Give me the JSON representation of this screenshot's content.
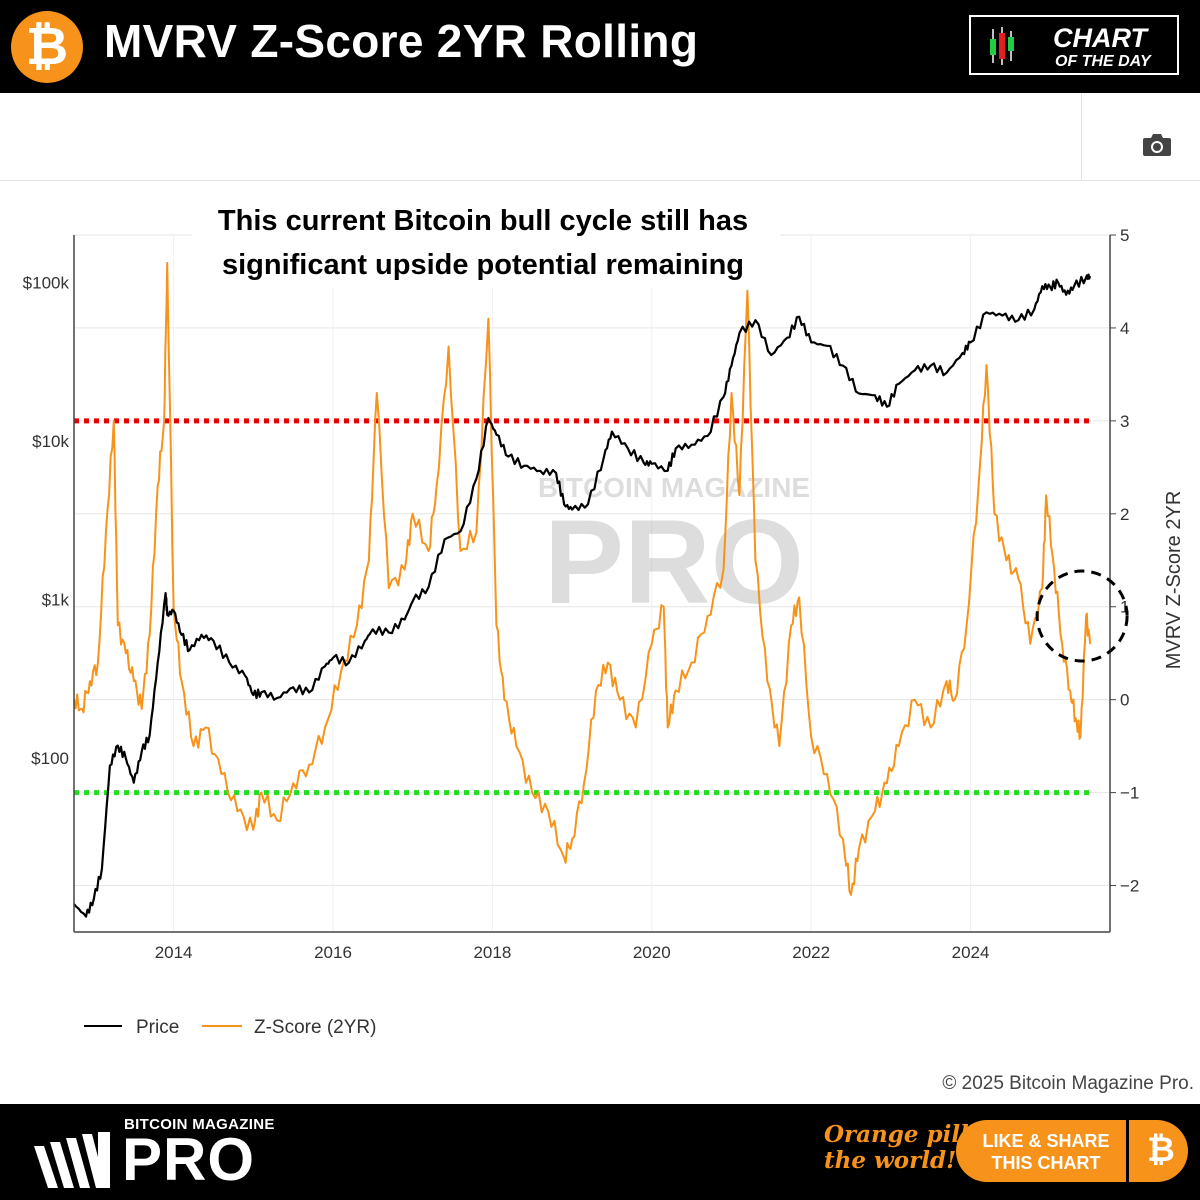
{
  "header": {
    "title": "MVRV Z-Score 2YR Rolling",
    "logo_icon": "bitcoin-icon",
    "badge_line1": "CHART",
    "badge_line2": "OF THE DAY"
  },
  "toolbar": {
    "camera_icon": "camera-icon"
  },
  "annotation": {
    "line1": "This current Bitcoin bull cycle still has",
    "line2": "significant upside potential remaining"
  },
  "watermark": {
    "small": "BITCOIN MAGAZINE",
    "big": "PRO"
  },
  "copyright": "© 2025 Bitcoin Magazine Pro.",
  "footer": {
    "brand_small": "BITCOIN MAGAZINE",
    "brand_big": "PRO",
    "slogan_line1": "Orange pill",
    "slogan_line2": "the world!",
    "share_line1": "LIKE & SHARE",
    "share_line2": "THIS CHART"
  },
  "colors": {
    "price": "#000000",
    "zscore": "#f7931a",
    "upper_band": "#e60000",
    "lower_band": "#22dd22",
    "accent": "#f7931a"
  },
  "chart_data": {
    "type": "line",
    "xlim": [
      2012.75,
      2025.75
    ],
    "x_ticks": [
      "2014",
      "2016",
      "2018",
      "2020",
      "2022",
      "2024"
    ],
    "y_left": {
      "scale": "log",
      "ticks": [
        "$100",
        "$1k",
        "$10k",
        "$100k"
      ],
      "range": [
        8,
        200000
      ]
    },
    "y_right": {
      "label": "MVRV Z-Score 2YR",
      "ticks": [
        "−2",
        "−1",
        "0",
        "1",
        "2",
        "3",
        "4",
        "5"
      ],
      "range": [
        -2.5,
        5
      ]
    },
    "grid": true,
    "legend_position": "bottom-left",
    "reference_lines": [
      {
        "axis": "right",
        "value": 3,
        "style": "dotted",
        "color": "#e60000"
      },
      {
        "axis": "right",
        "value": -1,
        "style": "dotted",
        "color": "#22dd22"
      }
    ],
    "highlight": {
      "shape": "dashed-circle",
      "x": 2025.4,
      "y_right": 0.9
    },
    "series": [
      {
        "name": "Price",
        "axis": "left",
        "x": [
          2012.75,
          2012.9,
          2013.0,
          2013.1,
          2013.2,
          2013.3,
          2013.4,
          2013.5,
          2013.6,
          2013.7,
          2013.8,
          2013.9,
          2013.92,
          2014.0,
          2014.1,
          2014.2,
          2014.35,
          2014.5,
          2014.7,
          2014.9,
          2015.0,
          2015.1,
          2015.3,
          2015.5,
          2015.7,
          2015.9,
          2016.0,
          2016.2,
          2016.4,
          2016.5,
          2016.7,
          2016.9,
          2017.0,
          2017.2,
          2017.4,
          2017.6,
          2017.8,
          2017.95,
          2018.05,
          2018.2,
          2018.4,
          2018.6,
          2018.8,
          2018.9,
          2019.0,
          2019.2,
          2019.4,
          2019.5,
          2019.7,
          2019.9,
          2020.0,
          2020.2,
          2020.3,
          2020.5,
          2020.7,
          2020.9,
          2021.0,
          2021.1,
          2021.3,
          2021.5,
          2021.7,
          2021.85,
          2022.0,
          2022.2,
          2022.4,
          2022.6,
          2022.8,
          2022.95,
          2023.1,
          2023.3,
          2023.5,
          2023.7,
          2023.9,
          2024.0,
          2024.2,
          2024.4,
          2024.6,
          2024.8,
          2024.9,
          2025.0,
          2025.1,
          2025.2,
          2025.3,
          2025.45,
          2025.5
        ],
        "values": [
          12,
          10,
          13,
          20,
          90,
          120,
          100,
          70,
          110,
          140,
          400,
          1100,
          800,
          850,
          600,
          480,
          600,
          550,
          400,
          330,
          250,
          260,
          240,
          280,
          260,
          380,
          430,
          400,
          550,
          650,
          620,
          750,
          980,
          1200,
          2400,
          2700,
          5800,
          14000,
          11000,
          8000,
          7000,
          6500,
          6300,
          4000,
          3700,
          4000,
          8000,
          11500,
          9000,
          7300,
          7200,
          6500,
          9000,
          9500,
          10800,
          19000,
          30000,
          48000,
          58000,
          35000,
          45000,
          61000,
          42000,
          40000,
          30000,
          20000,
          19500,
          16500,
          23000,
          28000,
          30000,
          27000,
          36000,
          42000,
          65000,
          62000,
          58000,
          68000,
          95000,
          94000,
          100000,
          84000,
          95000,
          108000,
          110000
        ]
      },
      {
        "name": "Z-Score (2YR)",
        "axis": "right",
        "x": [
          2012.75,
          2012.85,
          2012.95,
          2013.05,
          2013.15,
          2013.25,
          2013.3,
          2013.4,
          2013.5,
          2013.6,
          2013.7,
          2013.8,
          2013.88,
          2013.92,
          2014.0,
          2014.1,
          2014.25,
          2014.4,
          2014.6,
          2014.8,
          2015.0,
          2015.1,
          2015.3,
          2015.5,
          2015.7,
          2015.9,
          2016.1,
          2016.3,
          2016.45,
          2016.55,
          2016.7,
          2016.9,
          2017.0,
          2017.2,
          2017.3,
          2017.45,
          2017.6,
          2017.8,
          2017.95,
          2018.05,
          2018.15,
          2018.3,
          2018.5,
          2018.7,
          2018.9,
          2019.0,
          2019.15,
          2019.3,
          2019.45,
          2019.6,
          2019.8,
          2020.0,
          2020.15,
          2020.2,
          2020.3,
          2020.5,
          2020.7,
          2020.9,
          2021.0,
          2021.1,
          2021.2,
          2021.3,
          2021.45,
          2021.6,
          2021.75,
          2021.85,
          2022.0,
          2022.2,
          2022.4,
          2022.5,
          2022.6,
          2022.8,
          2022.95,
          2023.1,
          2023.3,
          2023.5,
          2023.7,
          2023.8,
          2023.95,
          2024.1,
          2024.2,
          2024.3,
          2024.45,
          2024.6,
          2024.75,
          2024.9,
          2024.95,
          2025.05,
          2025.15,
          2025.25,
          2025.32,
          2025.38,
          2025.45,
          2025.5
        ],
        "values": [
          0,
          -0.1,
          0.2,
          0.4,
          1.8,
          3.0,
          0.8,
          0.5,
          0.2,
          -0.1,
          0.7,
          2.3,
          3.0,
          4.7,
          1.0,
          0.2,
          -0.5,
          -0.3,
          -0.8,
          -1.2,
          -1.4,
          -1.0,
          -1.3,
          -0.9,
          -0.7,
          -0.3,
          0.3,
          0.8,
          1.5,
          3.3,
          1.2,
          1.4,
          2.0,
          1.6,
          2.3,
          3.8,
          1.6,
          1.8,
          4.1,
          0.8,
          0.0,
          -0.5,
          -1.0,
          -1.2,
          -1.7,
          -1.5,
          -0.9,
          0.1,
          0.4,
          0.0,
          -0.3,
          0.6,
          1.0,
          -0.3,
          0.1,
          0.4,
          0.9,
          1.4,
          3.3,
          2.2,
          4.4,
          1.5,
          0.2,
          -0.5,
          0.8,
          1.1,
          -0.4,
          -0.8,
          -1.5,
          -2.1,
          -1.6,
          -1.2,
          -0.9,
          -0.5,
          0.0,
          -0.3,
          0.2,
          0.0,
          0.8,
          2.3,
          3.6,
          2.0,
          1.5,
          1.3,
          0.6,
          1.2,
          2.2,
          1.4,
          0.6,
          0.1,
          -0.2,
          -0.4,
          0.9,
          0.6
        ]
      }
    ]
  }
}
